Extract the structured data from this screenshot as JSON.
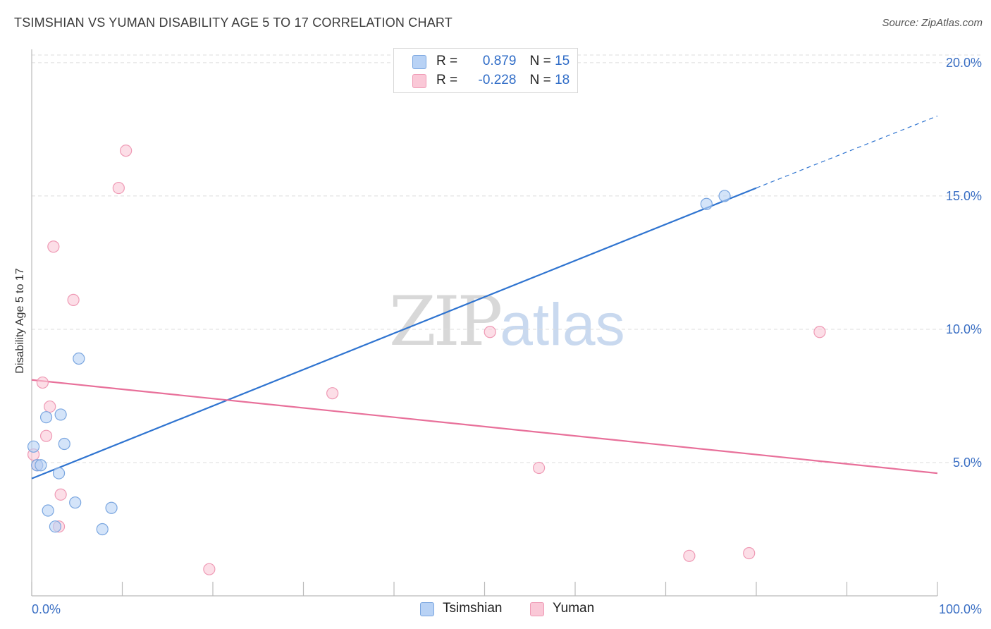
{
  "title": "TSIMSHIAN VS YUMAN DISABILITY AGE 5 TO 17 CORRELATION CHART",
  "source": "Source: ZipAtlas.com",
  "watermark": {
    "part1": "ZIP",
    "part2": "atlas"
  },
  "legend_top": [
    {
      "r_label": "R =",
      "r_value": "0.879",
      "n_label": "N =",
      "n_value": "15"
    },
    {
      "r_label": "R =",
      "r_value": "-0.228",
      "n_label": "N =",
      "n_value": "18"
    }
  ],
  "legend_bottom": [
    "Tsimshian",
    "Yuman"
  ],
  "colors": {
    "tsimshian_fill": "#b8d2f5",
    "tsimshian_stroke": "#7aa6e0",
    "tsimshian_line": "#2f74d0",
    "yuman_fill": "#fac8d7",
    "yuman_stroke": "#ef9ab5",
    "yuman_line": "#e8709a",
    "grid": "#dddddd",
    "tick_label": "#3a6fc4"
  },
  "chart_data": {
    "type": "scatter",
    "title": "TSIMSHIAN VS YUMAN DISABILITY AGE 5 TO 17 CORRELATION CHART",
    "xlabel": "",
    "ylabel": "Disability Age 5 to 17",
    "xlim": [
      0,
      100
    ],
    "ylim": [
      0,
      20.5
    ],
    "x_tick_labels": [
      "0.0%",
      "100.0%"
    ],
    "y_ticks": [
      5,
      10,
      15,
      20
    ],
    "y_tick_labels": [
      "5.0%",
      "10.0%",
      "15.0%",
      "20.0%"
    ],
    "series": [
      {
        "name": "Tsimshian",
        "r": 0.879,
        "n": 15,
        "points": [
          {
            "x": 0.2,
            "y": 5.6
          },
          {
            "x": 0.6,
            "y": 4.9
          },
          {
            "x": 1.0,
            "y": 4.9
          },
          {
            "x": 1.6,
            "y": 6.7
          },
          {
            "x": 1.8,
            "y": 3.2
          },
          {
            "x": 2.6,
            "y": 2.6
          },
          {
            "x": 3.0,
            "y": 4.6
          },
          {
            "x": 3.2,
            "y": 6.8
          },
          {
            "x": 3.6,
            "y": 5.7
          },
          {
            "x": 4.8,
            "y": 3.5
          },
          {
            "x": 5.2,
            "y": 8.9
          },
          {
            "x": 7.8,
            "y": 2.5
          },
          {
            "x": 8.8,
            "y": 3.3
          },
          {
            "x": 74.5,
            "y": 14.7
          },
          {
            "x": 76.5,
            "y": 15.0
          }
        ],
        "trend": {
          "x0": 0,
          "y0": 4.4,
          "x1": 80,
          "y1": 15.3,
          "dashed_to_x": 100,
          "dashed_to_y": 18.0
        }
      },
      {
        "name": "Yuman",
        "r": -0.228,
        "n": 18,
        "points": [
          {
            "x": 0.2,
            "y": 5.3
          },
          {
            "x": 0.6,
            "y": 4.9
          },
          {
            "x": 1.2,
            "y": 8.0
          },
          {
            "x": 1.6,
            "y": 6.0
          },
          {
            "x": 2.0,
            "y": 7.1
          },
          {
            "x": 2.4,
            "y": 13.1
          },
          {
            "x": 3.0,
            "y": 2.6
          },
          {
            "x": 3.2,
            "y": 3.8
          },
          {
            "x": 4.6,
            "y": 11.1
          },
          {
            "x": 9.6,
            "y": 15.3
          },
          {
            "x": 10.4,
            "y": 16.7
          },
          {
            "x": 19.6,
            "y": 1.0
          },
          {
            "x": 33.2,
            "y": 7.6
          },
          {
            "x": 50.6,
            "y": 9.9
          },
          {
            "x": 56.0,
            "y": 4.8
          },
          {
            "x": 72.6,
            "y": 1.5
          },
          {
            "x": 79.2,
            "y": 1.6
          },
          {
            "x": 87.0,
            "y": 9.9
          }
        ],
        "trend": {
          "x0": 0,
          "y0": 8.1,
          "x1": 100,
          "y1": 4.6
        }
      }
    ]
  }
}
